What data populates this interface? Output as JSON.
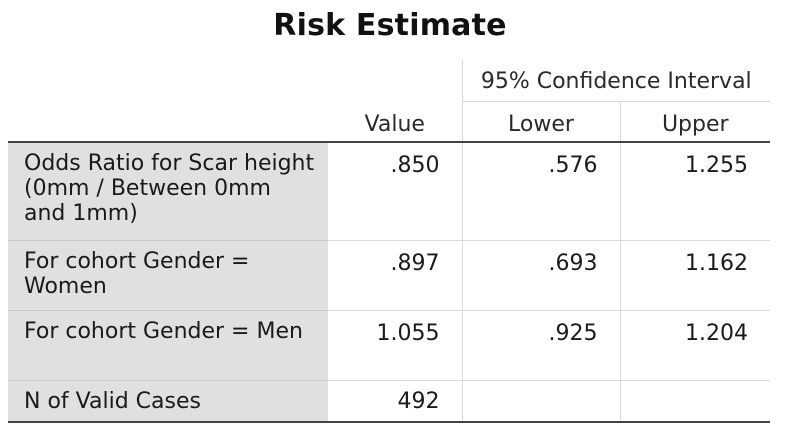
{
  "title": "Risk Estimate",
  "columns": {
    "ci_group": "95% Confidence Interval",
    "value": "Value",
    "lower": "Lower",
    "upper": "Upper"
  },
  "rows": [
    {
      "label": "Odds Ratio for Scar height (0mm / Between 0mm and 1mm)",
      "value": ".850",
      "lower": ".576",
      "upper": "1.255"
    },
    {
      "label": "For cohort Gender = Women",
      "value": ".897",
      "lower": ".693",
      "upper": "1.162"
    },
    {
      "label": "For cohort Gender = Men",
      "value": "1.055",
      "lower": ".925",
      "upper": "1.204"
    },
    {
      "label": "N of Valid Cases",
      "value": "492",
      "lower": "",
      "upper": ""
    }
  ]
}
